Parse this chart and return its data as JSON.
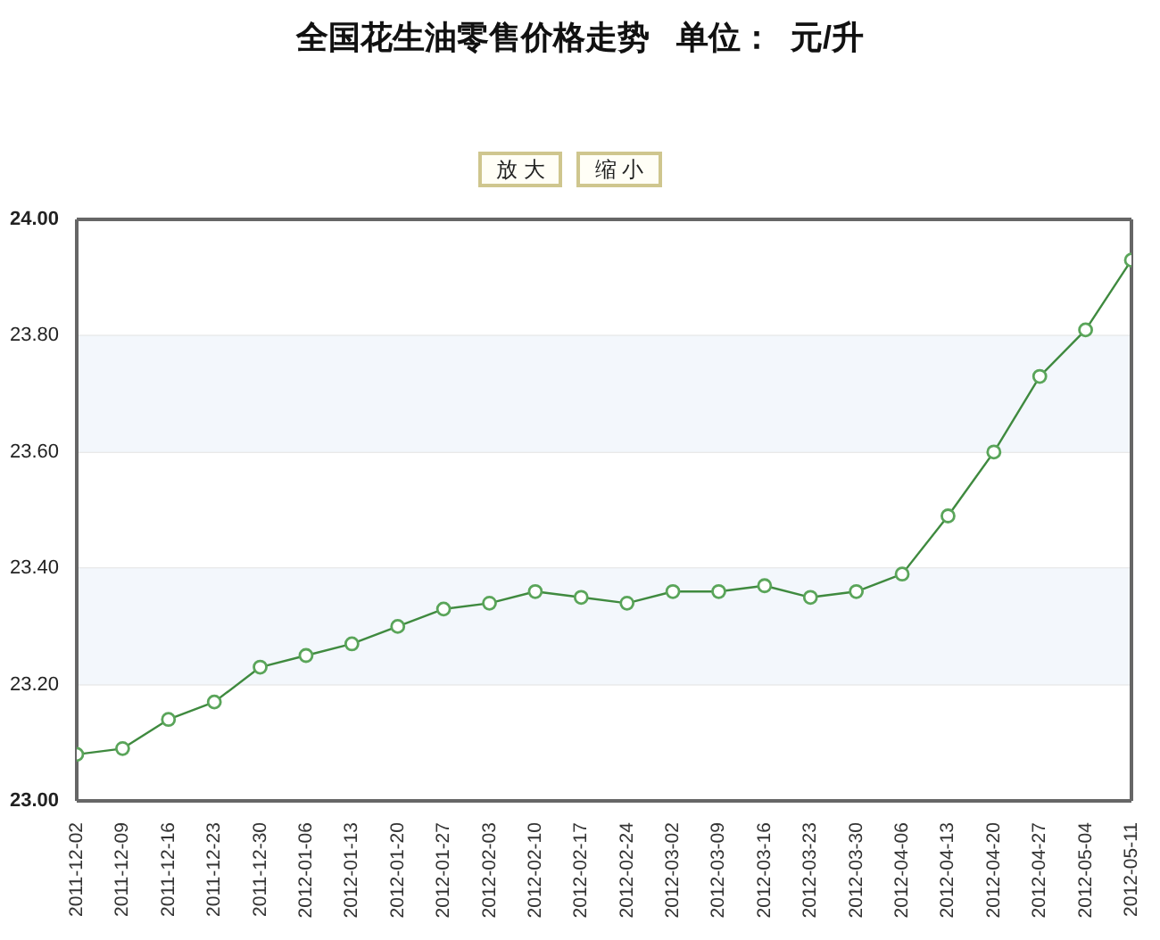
{
  "chart_data": {
    "type": "line",
    "title": "全国花生油零售价格走势   单位：  元/升",
    "annotations": [
      "放 大",
      "缩 小"
    ],
    "categories": [
      "2011-12-02",
      "2011-12-09",
      "2011-12-16",
      "2011-12-23",
      "2011-12-30",
      "2012-01-06",
      "2012-01-13",
      "2012-01-20",
      "2012-01-27",
      "2012-02-03",
      "2012-02-10",
      "2012-02-17",
      "2012-02-24",
      "2012-03-02",
      "2012-03-09",
      "2012-03-16",
      "2012-03-23",
      "2012-03-30",
      "2012-04-06",
      "2012-04-13",
      "2012-04-20",
      "2012-04-27",
      "2012-05-04",
      "2012-05-11"
    ],
    "values": [
      23.08,
      23.09,
      23.14,
      23.17,
      23.23,
      23.25,
      23.27,
      23.3,
      23.33,
      23.34,
      23.36,
      23.35,
      23.34,
      23.36,
      23.36,
      23.37,
      23.35,
      23.36,
      23.39,
      23.49,
      23.6,
      23.73,
      23.81,
      23.93
    ],
    "color": "#3f8a3f",
    "ylim": [
      23,
      24
    ],
    "yticks": [
      {
        "value": 23,
        "label": "23.00"
      },
      {
        "value": 23.2,
        "label": "23.20"
      },
      {
        "value": 23.4,
        "label": "23.40"
      },
      {
        "value": 23.6,
        "label": "23.60"
      },
      {
        "value": 23.8,
        "label": "23.80"
      },
      {
        "value": 24,
        "label": "24.00"
      }
    ],
    "bands": [
      {
        "axis": "y",
        "from": 23.2,
        "to": 23.4,
        "color": "#f3f7fc"
      },
      {
        "axis": "y",
        "from": 23.6,
        "to": 23.8,
        "color": "#f3f7fc"
      }
    ],
    "grid": "y",
    "marker": "circle",
    "line_style": "solid"
  }
}
